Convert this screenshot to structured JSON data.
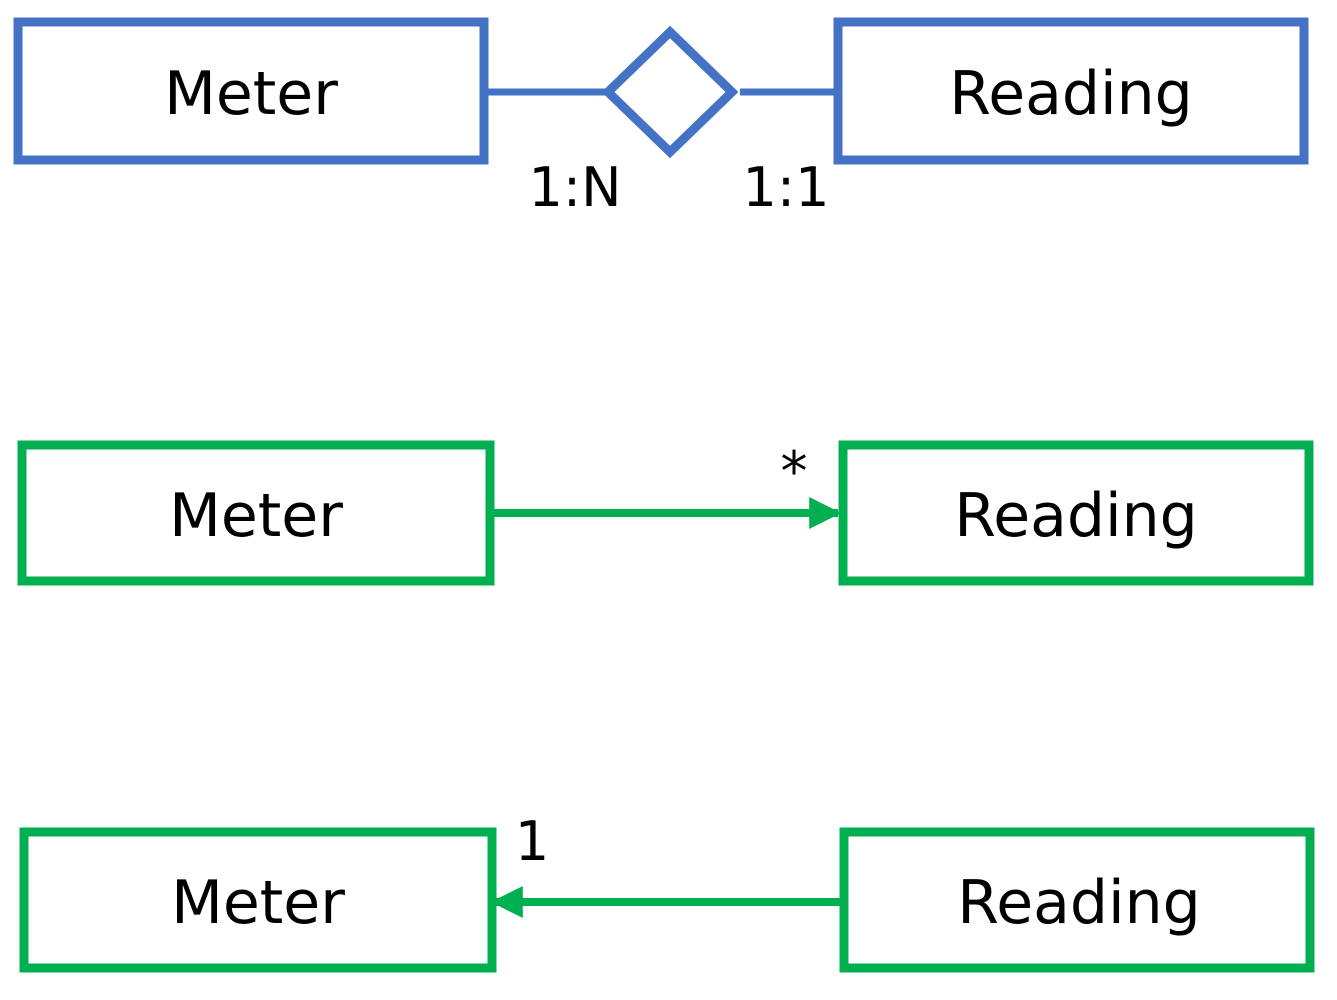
{
  "colors": {
    "er": "#4472C4",
    "uml": "#00B050",
    "text": "#000000"
  },
  "er": {
    "left_entity": "Meter",
    "right_entity": "Reading",
    "left_cardinality": "1:N",
    "right_cardinality": "1:1"
  },
  "uml_forward": {
    "source": "Meter",
    "target": "Reading",
    "multiplicity": "*"
  },
  "uml_backward": {
    "source": "Reading",
    "target": "Meter",
    "multiplicity": "1"
  }
}
